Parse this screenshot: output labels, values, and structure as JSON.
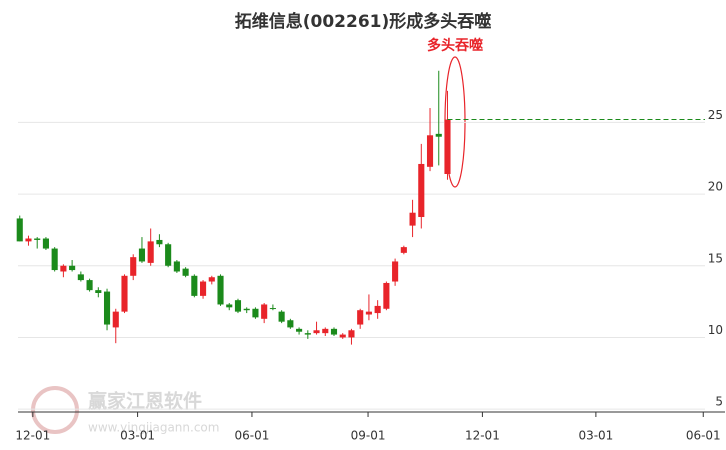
{
  "chart_data": {
    "type": "candlestick",
    "title": "拓维信息(002261)形成多头吞噬",
    "annotation": "多头吞噬",
    "watermark": "赢家江恩软件",
    "watermark_url": "www.yingjiagann.com",
    "categories": [
      null,
      null,
      null,
      null,
      null,
      null,
      null,
      null,
      null,
      null,
      null,
      null,
      null,
      null,
      null,
      null,
      null,
      null,
      null,
      null,
      null,
      null,
      null,
      null,
      null,
      null,
      null,
      null,
      null,
      null,
      null,
      null,
      null,
      null,
      null,
      null,
      null,
      null,
      null,
      null,
      null,
      null,
      null,
      null,
      null,
      null,
      null,
      null,
      null,
      null
    ],
    "open": [
      18.3,
      16.7,
      16.9,
      16.9,
      16.2,
      14.6,
      15.0,
      14.4,
      14.0,
      13.3,
      13.2,
      10.7,
      11.8,
      14.3,
      16.2,
      15.2,
      16.8,
      16.5,
      15.3,
      14.8,
      14.3,
      12.9,
      13.9,
      14.3,
      12.3,
      12.6,
      12.0,
      12.0,
      11.3,
      12.05,
      11.8,
      11.2,
      10.6,
      10.3,
      10.3,
      10.3,
      10.6,
      10.0,
      10.0,
      10.9,
      11.6,
      11.7,
      12.0,
      13.9,
      15.9,
      17.8,
      18.4,
      21.9,
      24.2,
      21.4
    ],
    "high": [
      18.5,
      17.1,
      17.0,
      17.0,
      16.3,
      15.1,
      15.4,
      14.6,
      14.1,
      13.5,
      13.4,
      12.0,
      14.4,
      15.8,
      17.0,
      17.6,
      17.2,
      16.6,
      15.4,
      14.9,
      14.4,
      14.0,
      14.3,
      14.4,
      12.4,
      12.7,
      12.1,
      12.1,
      12.4,
      12.3,
      11.9,
      11.3,
      10.7,
      10.5,
      11.1,
      10.7,
      10.7,
      10.3,
      10.6,
      12.0,
      13.0,
      12.6,
      13.9,
      15.5,
      16.4,
      19.6,
      23.5,
      26.0,
      28.6,
      27.2
    ],
    "low": [
      16.7,
      16.4,
      16.2,
      16.1,
      14.6,
      14.2,
      14.6,
      13.9,
      13.2,
      12.8,
      10.5,
      9.6,
      11.7,
      14.0,
      15.2,
      15.0,
      16.3,
      14.9,
      14.5,
      14.2,
      12.8,
      12.7,
      13.7,
      12.2,
      11.9,
      11.7,
      11.7,
      11.3,
      11.0,
      11.9,
      11.0,
      10.6,
      10.2,
      9.9,
      10.2,
      10.1,
      10.1,
      9.9,
      9.5,
      10.6,
      11.2,
      11.3,
      11.9,
      13.6,
      15.8,
      17.0,
      17.6,
      21.6,
      22.0,
      21.0
    ],
    "close": [
      16.7,
      16.9,
      16.8,
      16.2,
      14.7,
      15.0,
      14.7,
      14.0,
      13.3,
      13.1,
      10.9,
      11.8,
      14.3,
      15.6,
      15.3,
      16.7,
      16.5,
      15.0,
      14.6,
      14.3,
      12.9,
      13.9,
      14.2,
      12.3,
      12.1,
      11.8,
      11.9,
      11.4,
      12.3,
      12.0,
      11.1,
      10.7,
      10.4,
      10.2,
      10.5,
      10.6,
      10.2,
      10.2,
      10.5,
      11.9,
      11.8,
      12.2,
      13.8,
      15.3,
      16.3,
      18.7,
      22.1,
      24.1,
      24.0,
      25.2
    ],
    "up_color": "#e8242a",
    "down_color": "#1b8a1b",
    "reference_line": 25.2,
    "reference_color": "#1b8a1b",
    "xlim": [
      -0.2,
      78.5
    ],
    "xticks": [
      {
        "value": 1.5,
        "label": "12-01"
      },
      {
        "value": 13.5,
        "label": "03-01"
      },
      {
        "value": 26.6,
        "label": "06-01"
      },
      {
        "value": 39.9,
        "label": "09-01"
      },
      {
        "value": 53,
        "label": "12-01"
      },
      {
        "value": 66,
        "label": "03-01"
      },
      {
        "value": 78.3,
        "label": "06-01"
      }
    ],
    "ylim": [
      4.8,
      29.7
    ],
    "yticks": [
      5,
      10,
      15,
      20,
      25
    ],
    "grid": true
  }
}
